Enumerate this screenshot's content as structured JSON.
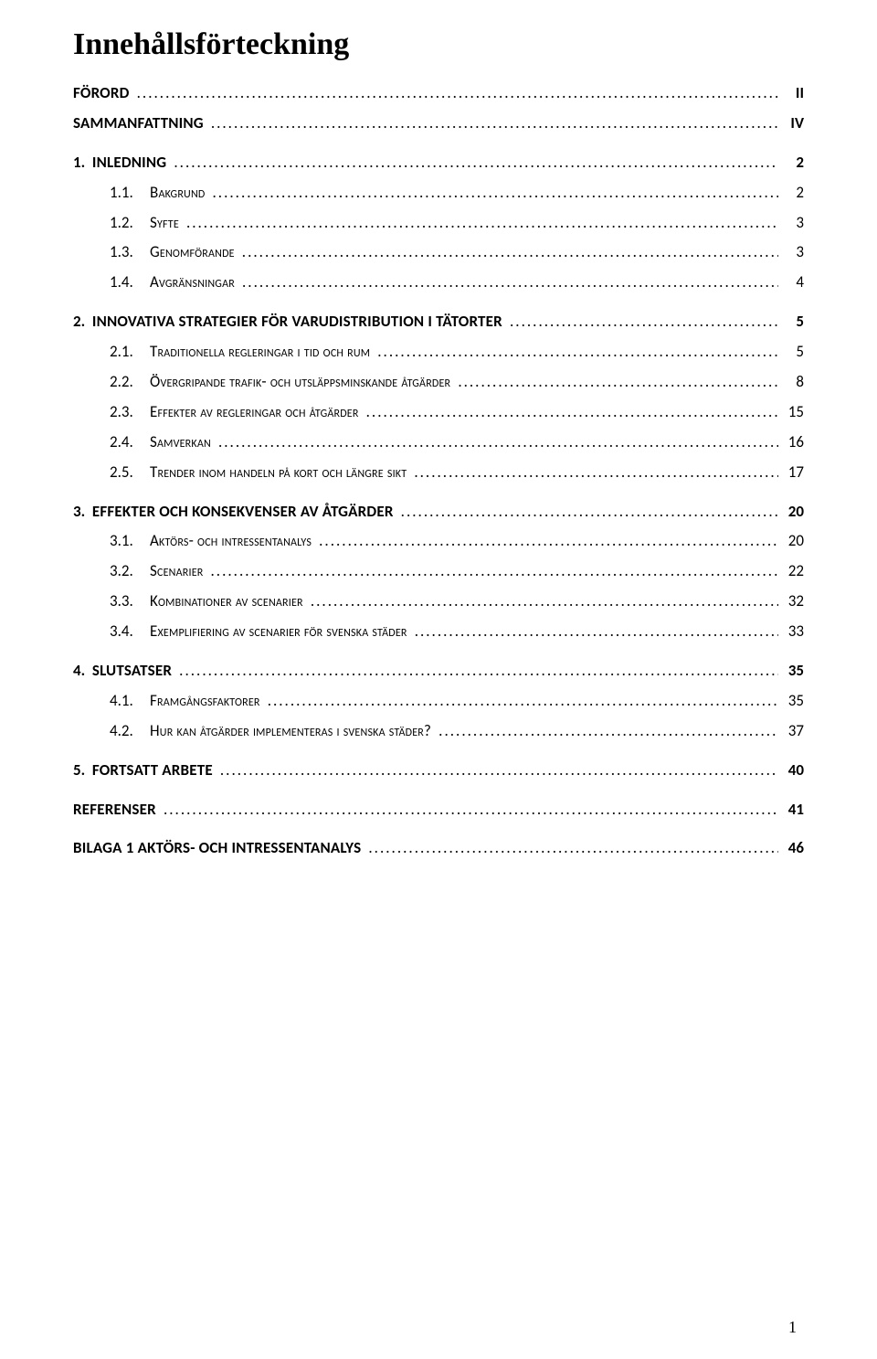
{
  "title": "Innehållsförteckning",
  "footer_page": "1",
  "entries": [
    {
      "level": 0,
      "bold": true,
      "num": "",
      "label": "FÖRORD",
      "smallcaps": false,
      "page": "II"
    },
    {
      "level": 0,
      "bold": true,
      "num": "",
      "label": "SAMMANFATTNING",
      "smallcaps": false,
      "page": "IV"
    },
    {
      "level": 0,
      "bold": true,
      "num": "1.",
      "label": "INLEDNING",
      "smallcaps": false,
      "page": "2",
      "gap": true
    },
    {
      "level": 1,
      "bold": false,
      "num": "1.1.",
      "label": "Bakgrund",
      "smallcaps": true,
      "page": "2"
    },
    {
      "level": 1,
      "bold": false,
      "num": "1.2.",
      "label": "Syfte",
      "smallcaps": true,
      "page": "3"
    },
    {
      "level": 1,
      "bold": false,
      "num": "1.3.",
      "label": "Genomförande",
      "smallcaps": true,
      "page": "3"
    },
    {
      "level": 1,
      "bold": false,
      "num": "1.4.",
      "label": "Avgränsningar",
      "smallcaps": true,
      "page": "4"
    },
    {
      "level": 0,
      "bold": true,
      "num": "2.",
      "label": "INNOVATIVA STRATEGIER FÖR VARUDISTRIBUTION I TÄTORTER",
      "smallcaps": false,
      "page": "5",
      "gap": true
    },
    {
      "level": 1,
      "bold": false,
      "num": "2.1.",
      "label": "Traditionella regleringar i tid och rum",
      "smallcaps": true,
      "page": "5"
    },
    {
      "level": 1,
      "bold": false,
      "num": "2.2.",
      "label": "Övergripande trafik- och utsläppsminskande åtgärder",
      "smallcaps": true,
      "page": "8"
    },
    {
      "level": 1,
      "bold": false,
      "num": "2.3.",
      "label": "Effekter av regleringar och åtgärder",
      "smallcaps": true,
      "page": "15"
    },
    {
      "level": 1,
      "bold": false,
      "num": "2.4.",
      "label": "Samverkan",
      "smallcaps": true,
      "page": "16"
    },
    {
      "level": 1,
      "bold": false,
      "num": "2.5.",
      "label": "Trender inom handeln på kort och längre sikt",
      "smallcaps": true,
      "page": "17"
    },
    {
      "level": 0,
      "bold": true,
      "num": "3.",
      "label": "EFFEKTER OCH KONSEKVENSER AV ÅTGÄRDER",
      "smallcaps": false,
      "page": "20",
      "gap": true
    },
    {
      "level": 1,
      "bold": false,
      "num": "3.1.",
      "label": "Aktörs- och intressentanalys",
      "smallcaps": true,
      "page": "20"
    },
    {
      "level": 1,
      "bold": false,
      "num": "3.2.",
      "label": "Scenarier",
      "smallcaps": true,
      "page": "22"
    },
    {
      "level": 1,
      "bold": false,
      "num": "3.3.",
      "label": "Kombinationer av scenarier",
      "smallcaps": true,
      "page": "32"
    },
    {
      "level": 1,
      "bold": false,
      "num": "3.4.",
      "label": "Exemplifiering av scenarier för svenska städer",
      "smallcaps": true,
      "page": "33"
    },
    {
      "level": 0,
      "bold": true,
      "num": "4.",
      "label": "SLUTSATSER",
      "smallcaps": false,
      "page": "35",
      "gap": true
    },
    {
      "level": 1,
      "bold": false,
      "num": "4.1.",
      "label": "Framgångsfaktorer",
      "smallcaps": true,
      "page": "35"
    },
    {
      "level": 1,
      "bold": false,
      "num": "4.2.",
      "label": "Hur kan åtgärder implementeras i svenska städer?",
      "smallcaps": true,
      "page": "37"
    },
    {
      "level": 0,
      "bold": true,
      "num": "5.",
      "label": "FORTSATT ARBETE",
      "smallcaps": false,
      "page": "40",
      "gap": true
    },
    {
      "level": 0,
      "bold": true,
      "num": "",
      "label": "REFERENSER",
      "smallcaps": false,
      "page": "41",
      "gap": true
    },
    {
      "level": 0,
      "bold": true,
      "num": "",
      "label": "BILAGA 1 AKTÖRS- OCH INTRESSENTANALYS",
      "smallcaps": false,
      "page": "46",
      "gap": true
    }
  ]
}
